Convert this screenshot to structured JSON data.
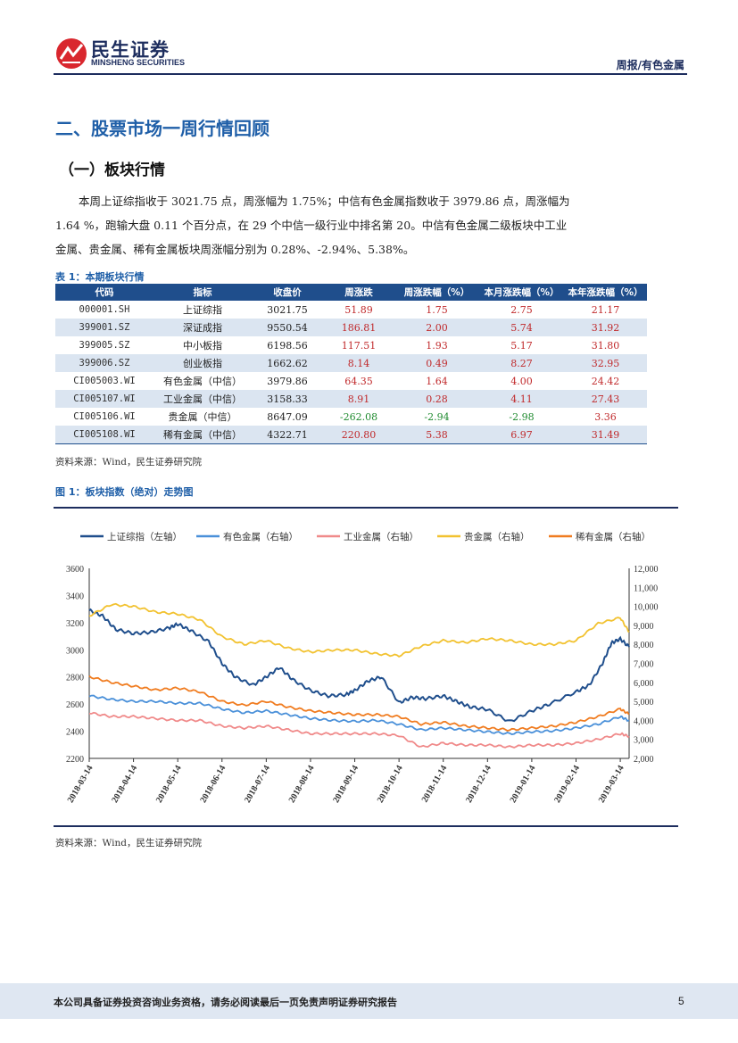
{
  "header": {
    "logo_cn": "民生证券",
    "logo_en": "MINSHENG SECURITIES",
    "report_type": "周报/有色金属"
  },
  "section_title": "二、股票市场一周行情回顾",
  "subsection_title": "（一）板块行情",
  "paragraph": "本周上证综指收于 3021.75 点，周涨幅为 1.75%；中信有色金属指数收于 3979.86 点，周涨幅为 1.64 %，跑输大盘 0.11 个百分点，在 29 个中信一级行业中排名第 20。中信有色金属二级板块中工业金属、贵金属、稀有金属板块周涨幅分别为 0.28%、-2.94%、5.38%。",
  "table": {
    "caption": "表 1：本期板块行情",
    "headers": [
      "代码",
      "指标",
      "收盘价",
      "周涨跌",
      "周涨跌幅（%）",
      "本月涨跌幅（%）",
      "本年涨跌幅（%）"
    ],
    "rows": [
      [
        "000001.SH",
        "上证综指",
        "3021.75",
        "51.89",
        "1.75",
        "2.75",
        "21.17"
      ],
      [
        "399001.SZ",
        "深证成指",
        "9550.54",
        "186.81",
        "2.00",
        "5.74",
        "31.92"
      ],
      [
        "399005.SZ",
        "中小板指",
        "6198.56",
        "117.51",
        "1.93",
        "5.17",
        "31.80"
      ],
      [
        "399006.SZ",
        "创业板指",
        "1662.62",
        "8.14",
        "0.49",
        "8.27",
        "32.95"
      ],
      [
        "CI005003.WI",
        "有色金属（中信）",
        "3979.86",
        "64.35",
        "1.64",
        "4.00",
        "24.42"
      ],
      [
        "CI005107.WI",
        "工业金属（中信）",
        "3158.33",
        "8.91",
        "0.28",
        "4.11",
        "27.43"
      ],
      [
        "CI005106.WI",
        "贵金属（中信）",
        "8647.09",
        "-262.08",
        "-2.94",
        "-2.98",
        "3.36"
      ],
      [
        "CI005108.WI",
        "稀有金属（中信）",
        "4322.71",
        "220.80",
        "5.38",
        "6.97",
        "31.49"
      ]
    ],
    "source": "资料来源：Wind，民生证券研究院"
  },
  "figure": {
    "caption": "图 1：板块指数（绝对）走势图",
    "source": "资料来源：Wind，民生证券研究院"
  },
  "chart_data": {
    "type": "line",
    "title": "",
    "legend_position": "top",
    "x": [
      "2018-03-14",
      "2018-04-14",
      "2018-05-14",
      "2018-06-14",
      "2018-07-14",
      "2018-08-14",
      "2018-09-14",
      "2018-10-14",
      "2018-11-14",
      "2018-12-14",
      "2019-01-14",
      "2019-02-14",
      "2019-03-14"
    ],
    "y_left": {
      "min": 2200,
      "max": 3600,
      "ticks": [
        "2200",
        "2400",
        "2600",
        "2800",
        "3000",
        "3200",
        "3400",
        "3600"
      ]
    },
    "y_right": {
      "min": 2000,
      "max": 12000,
      "ticks": [
        "2,000",
        "3,000",
        "4,000",
        "5,000",
        "6,000",
        "7,000",
        "8,000",
        "9,000",
        "10,000",
        "11,000",
        "12,000"
      ]
    },
    "grid": false,
    "series": [
      {
        "name": "上证综指（左轴）",
        "axis": "left",
        "color": "#1f4e8c",
        "values": [
          [
            0,
            3290
          ],
          [
            0.3,
            3250
          ],
          [
            0.6,
            3150
          ],
          [
            1,
            3120
          ],
          [
            1.4,
            3130
          ],
          [
            1.8,
            3160
          ],
          [
            2,
            3190
          ],
          [
            2.3,
            3140
          ],
          [
            2.7,
            3060
          ],
          [
            3,
            2900
          ],
          [
            3.3,
            2800
          ],
          [
            3.7,
            2740
          ],
          [
            4,
            2800
          ],
          [
            4.3,
            2870
          ],
          [
            4.6,
            2780
          ],
          [
            5,
            2700
          ],
          [
            5.4,
            2660
          ],
          [
            5.8,
            2670
          ],
          [
            6,
            2700
          ],
          [
            6.3,
            2770
          ],
          [
            6.6,
            2800
          ],
          [
            7,
            2610
          ],
          [
            7.3,
            2650
          ],
          [
            7.6,
            2640
          ],
          [
            8,
            2660
          ],
          [
            8.3,
            2620
          ],
          [
            8.6,
            2580
          ],
          [
            9,
            2560
          ],
          [
            9.5,
            2470
          ],
          [
            10,
            2550
          ],
          [
            10.4,
            2600
          ],
          [
            11,
            2690
          ],
          [
            11.3,
            2740
          ],
          [
            11.6,
            2900
          ],
          [
            11.8,
            3050
          ],
          [
            12,
            3080
          ],
          [
            12.2,
            3021
          ]
        ]
      },
      {
        "name": "有色金属（右轴）",
        "axis": "right",
        "color": "#4a90d9",
        "values": [
          [
            0,
            5300
          ],
          [
            0.5,
            5100
          ],
          [
            1,
            5000
          ],
          [
            1.5,
            5000
          ],
          [
            2,
            4900
          ],
          [
            2.5,
            4900
          ],
          [
            3,
            4600
          ],
          [
            3.5,
            4400
          ],
          [
            4,
            4500
          ],
          [
            4.5,
            4300
          ],
          [
            5,
            4100
          ],
          [
            5.5,
            4000
          ],
          [
            6,
            3950
          ],
          [
            6.5,
            4000
          ],
          [
            7,
            3800
          ],
          [
            7.5,
            3500
          ],
          [
            8,
            3600
          ],
          [
            8.5,
            3500
          ],
          [
            9,
            3400
          ],
          [
            9.5,
            3300
          ],
          [
            10,
            3400
          ],
          [
            10.5,
            3450
          ],
          [
            11,
            3600
          ],
          [
            11.5,
            3800
          ],
          [
            12,
            4200
          ],
          [
            12.2,
            3980
          ]
        ]
      },
      {
        "name": "工业金属（右轴）",
        "axis": "right",
        "color": "#f08a8a",
        "values": [
          [
            0,
            4400
          ],
          [
            0.5,
            4200
          ],
          [
            1,
            4200
          ],
          [
            1.5,
            4100
          ],
          [
            2,
            4000
          ],
          [
            2.5,
            4000
          ],
          [
            3,
            3700
          ],
          [
            3.5,
            3600
          ],
          [
            4,
            3700
          ],
          [
            4.5,
            3500
          ],
          [
            5,
            3300
          ],
          [
            5.5,
            3300
          ],
          [
            6,
            3300
          ],
          [
            6.5,
            3300
          ],
          [
            7,
            3200
          ],
          [
            7.5,
            2600
          ],
          [
            8,
            2800
          ],
          [
            8.5,
            2700
          ],
          [
            9,
            2700
          ],
          [
            9.5,
            2600
          ],
          [
            10,
            2700
          ],
          [
            10.5,
            2700
          ],
          [
            11,
            2800
          ],
          [
            11.5,
            3000
          ],
          [
            12,
            3300
          ],
          [
            12.2,
            3158
          ]
        ]
      },
      {
        "name": "贵金属（右轴）",
        "axis": "right",
        "color": "#f2c230",
        "values": [
          [
            0,
            9500
          ],
          [
            0.5,
            10100
          ],
          [
            1,
            10000
          ],
          [
            1.5,
            9700
          ],
          [
            2,
            9600
          ],
          [
            2.5,
            9300
          ],
          [
            3,
            8400
          ],
          [
            3.5,
            8000
          ],
          [
            4,
            8200
          ],
          [
            4.5,
            7800
          ],
          [
            5,
            7600
          ],
          [
            5.5,
            7700
          ],
          [
            6,
            7700
          ],
          [
            6.5,
            7500
          ],
          [
            7,
            7400
          ],
          [
            7.5,
            7900
          ],
          [
            8,
            8200
          ],
          [
            8.5,
            8100
          ],
          [
            9,
            8300
          ],
          [
            9.5,
            8200
          ],
          [
            10,
            8000
          ],
          [
            10.5,
            8000
          ],
          [
            11,
            8200
          ],
          [
            11.5,
            9100
          ],
          [
            12,
            9400
          ],
          [
            12.2,
            8647
          ]
        ]
      },
      {
        "name": "稀有金属（右轴）",
        "axis": "right",
        "color": "#f07c20",
        "values": [
          [
            0,
            6300
          ],
          [
            0.5,
            6000
          ],
          [
            1,
            5800
          ],
          [
            1.5,
            5600
          ],
          [
            2,
            5700
          ],
          [
            2.5,
            5500
          ],
          [
            3,
            5000
          ],
          [
            3.5,
            4800
          ],
          [
            4,
            5000
          ],
          [
            4.5,
            4700
          ],
          [
            5,
            4500
          ],
          [
            5.5,
            4400
          ],
          [
            6,
            4300
          ],
          [
            6.5,
            4300
          ],
          [
            7,
            4200
          ],
          [
            7.5,
            3800
          ],
          [
            8,
            3900
          ],
          [
            8.5,
            3700
          ],
          [
            9,
            3600
          ],
          [
            9.5,
            3500
          ],
          [
            10,
            3600
          ],
          [
            10.5,
            3700
          ],
          [
            11,
            3900
          ],
          [
            11.5,
            4200
          ],
          [
            12,
            4600
          ],
          [
            12.2,
            4323
          ]
        ]
      }
    ]
  },
  "footer": {
    "disclaimer": "本公司具备证券投资咨询业务资格，请务必阅读最后一页免责声明证券研究报告",
    "page": "5"
  }
}
